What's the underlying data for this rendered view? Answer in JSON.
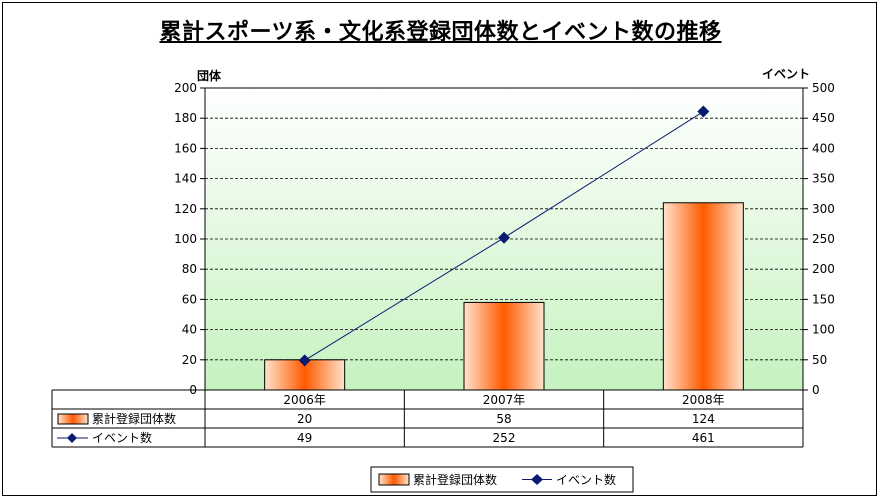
{
  "chart_data": {
    "type": "bar+line",
    "title": "累計スポーツ系・文化系登録団体数とイベント数の推移",
    "categories": [
      "2006年",
      "2007年",
      "2008年"
    ],
    "y_left": {
      "label": "団体",
      "range": [
        0,
        200
      ],
      "ticks": [
        "0",
        "20",
        "40",
        "60",
        "80",
        "100",
        "120",
        "140",
        "160",
        "180",
        "200"
      ]
    },
    "y_right": {
      "label": "イベント",
      "range": [
        0,
        500
      ],
      "ticks": [
        "0",
        "50",
        "100",
        "150",
        "200",
        "250",
        "300",
        "350",
        "400",
        "450",
        "500"
      ]
    },
    "series": [
      {
        "name": "累計登録団体数",
        "type": "bar",
        "axis": "left",
        "values": [
          20,
          58,
          124
        ]
      },
      {
        "name": "イベント数",
        "type": "line",
        "axis": "right",
        "values": [
          49,
          252,
          461
        ]
      }
    ],
    "data_table": true,
    "gridlines": "horizontal dashed",
    "legend_position": "bottom",
    "colors": {
      "bar_center": "#ff5a00",
      "bar_edge": "#ffe3cc",
      "line": "#0a1a6e",
      "plot_top": "#ffffff",
      "plot_bottom": "#c6f2c0"
    }
  }
}
